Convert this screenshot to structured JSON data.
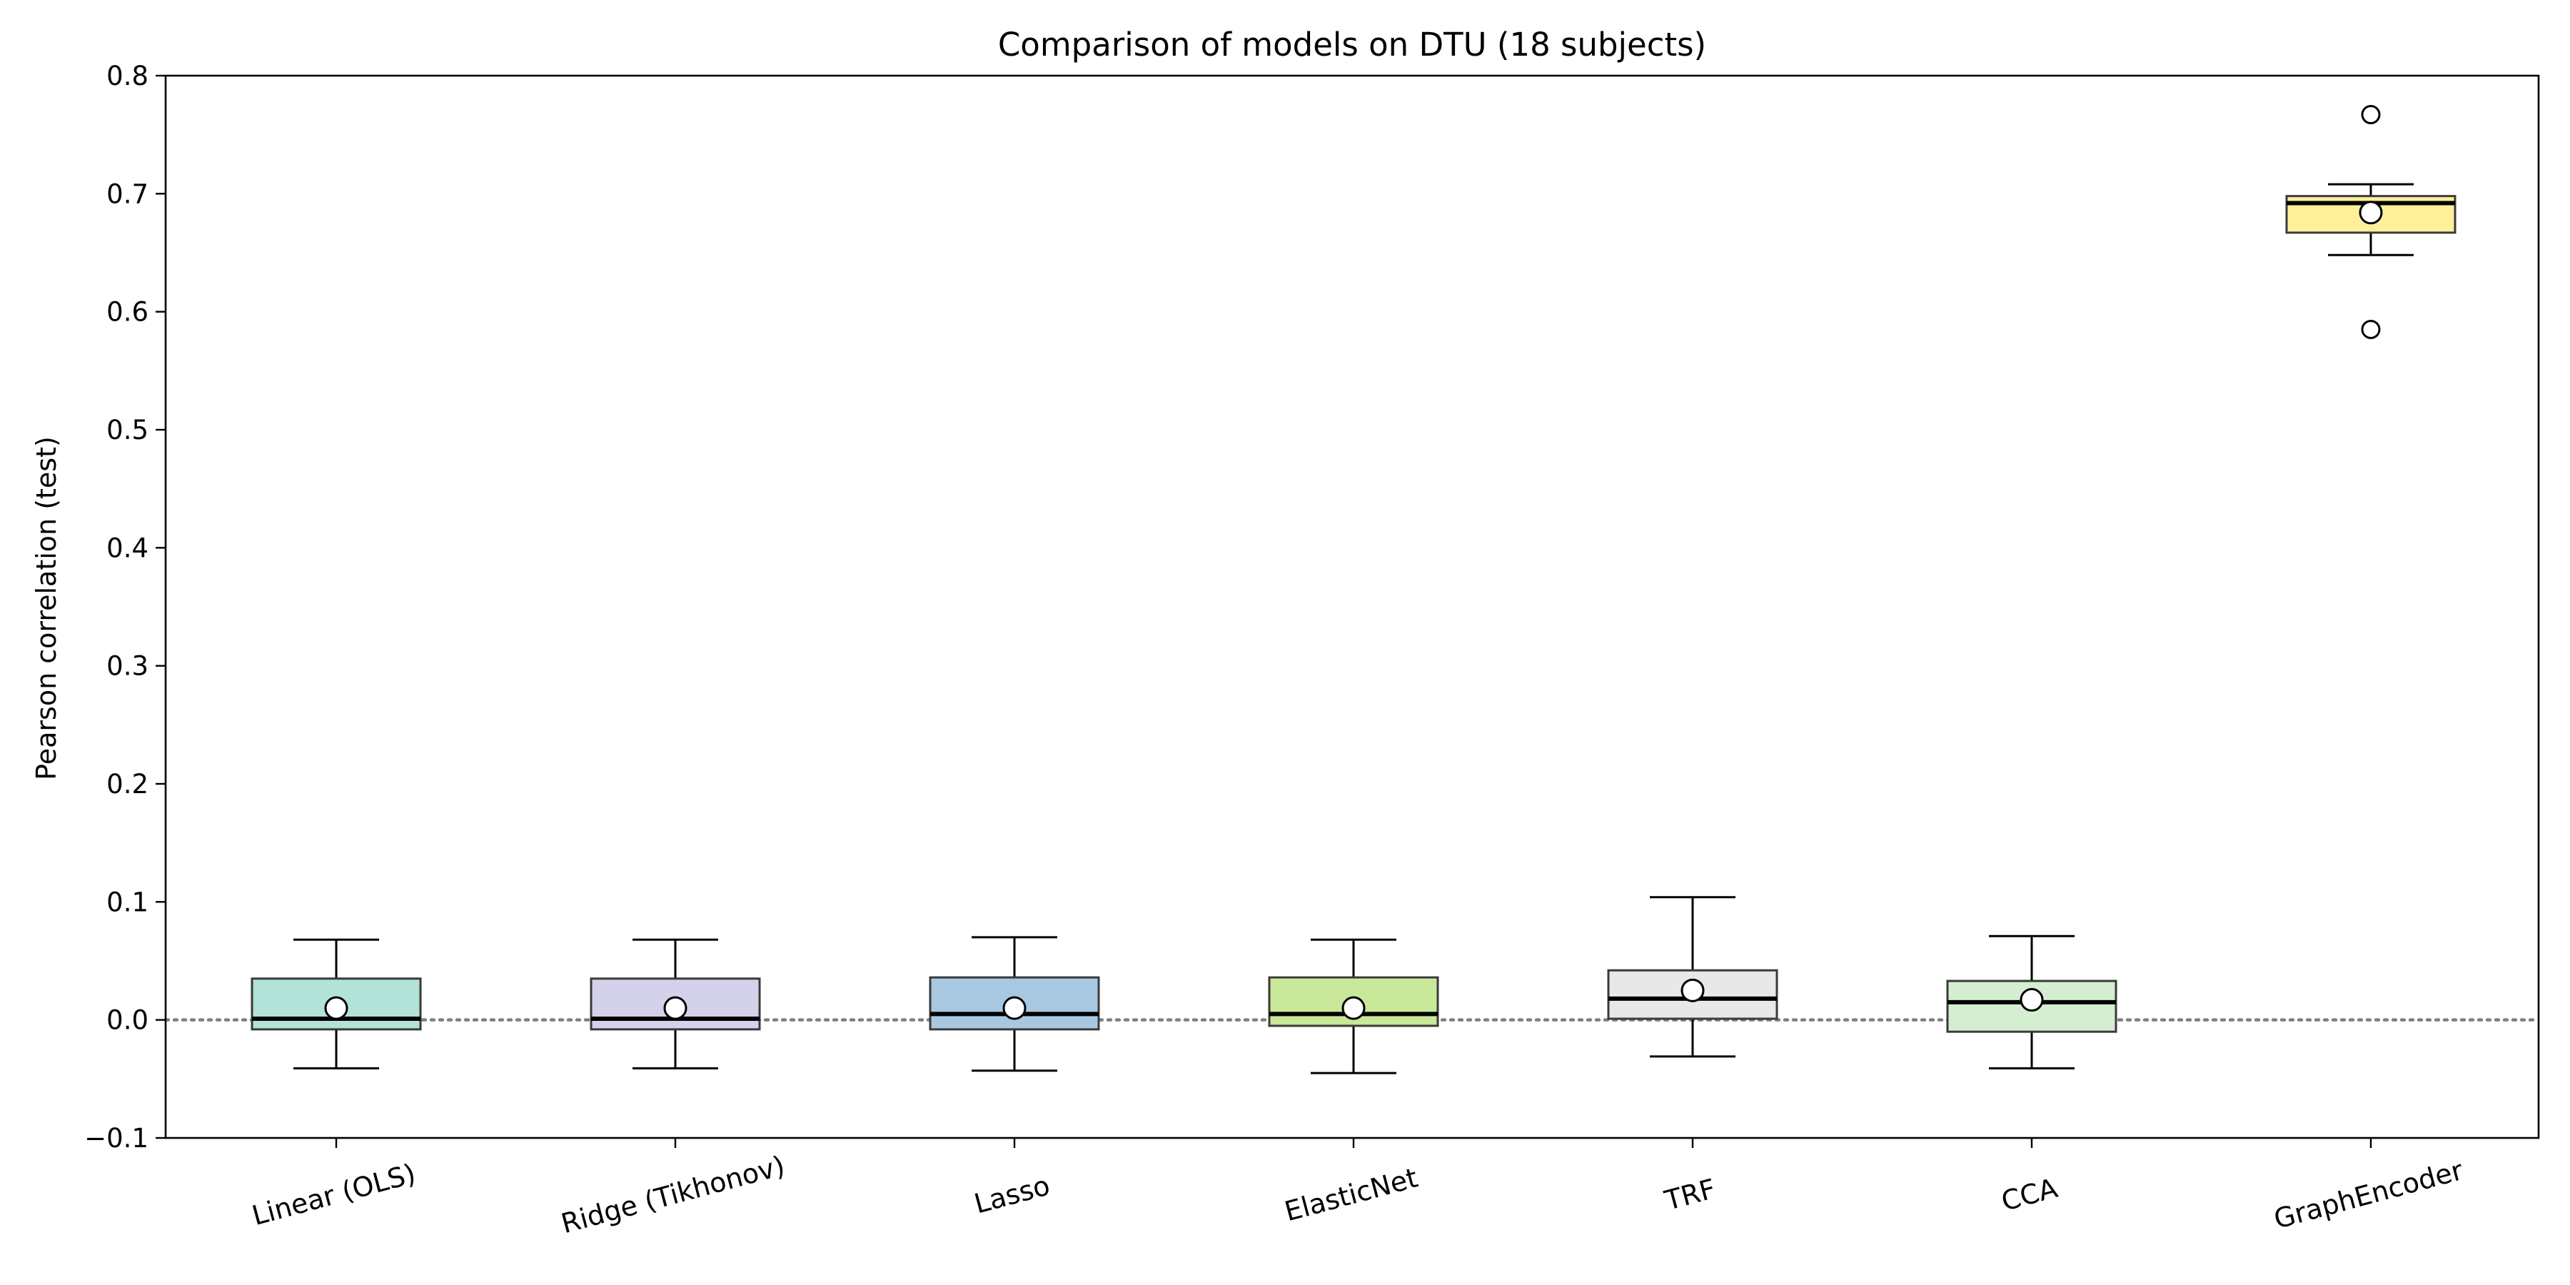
{
  "chart_data": {
    "type": "box",
    "title": "Comparison of models on DTU (18 subjects)",
    "xlabel": "",
    "ylabel": "Pearson correlation (test)",
    "ylim": [
      -0.1,
      0.8
    ],
    "yticks": [
      -0.1,
      0.0,
      0.1,
      0.2,
      0.3,
      0.4,
      0.5,
      0.6,
      0.7,
      0.8
    ],
    "ytick_labels": [
      "−0.1",
      "0.0",
      "0.1",
      "0.2",
      "0.3",
      "0.4",
      "0.5",
      "0.6",
      "0.7",
      "0.8"
    ],
    "reference_line": {
      "y": 0.0,
      "style": "dotted",
      "color": "#808080"
    },
    "grid": false,
    "legend": "none",
    "categories": [
      "Linear (OLS)",
      "Ridge (Tikhonov)",
      "Lasso",
      "ElasticNet",
      "TRF",
      "CCA",
      "GraphEncoder"
    ],
    "boxes": [
      {
        "whisker_low": -0.041,
        "q1": -0.008,
        "median": 0.001,
        "q3": 0.035,
        "whisker_high": 0.068,
        "mean": 0.01,
        "outliers": [],
        "color": "#b2e2d8"
      },
      {
        "whisker_low": -0.041,
        "q1": -0.008,
        "median": 0.001,
        "q3": 0.035,
        "whisker_high": 0.068,
        "mean": 0.01,
        "outliers": [],
        "color": "#d4d1ea"
      },
      {
        "whisker_low": -0.043,
        "q1": -0.008,
        "median": 0.005,
        "q3": 0.036,
        "whisker_high": 0.07,
        "mean": 0.01,
        "outliers": [],
        "color": "#a8c8e2"
      },
      {
        "whisker_low": -0.045,
        "q1": -0.005,
        "median": 0.005,
        "q3": 0.036,
        "whisker_high": 0.068,
        "mean": 0.01,
        "outliers": [],
        "color": "#c9e89a"
      },
      {
        "whisker_low": -0.031,
        "q1": 0.001,
        "median": 0.018,
        "q3": 0.042,
        "whisker_high": 0.104,
        "mean": 0.025,
        "outliers": [],
        "color": "#e8e8e8"
      },
      {
        "whisker_low": -0.041,
        "q1": -0.01,
        "median": 0.015,
        "q3": 0.033,
        "whisker_high": 0.071,
        "mean": 0.017,
        "outliers": [],
        "color": "#d5eed2"
      },
      {
        "whisker_low": 0.648,
        "q1": 0.667,
        "median": 0.692,
        "q3": 0.698,
        "whisker_high": 0.708,
        "mean": 0.684,
        "outliers": [
          0.767,
          0.585
        ],
        "color": "#fef09a"
      }
    ]
  }
}
